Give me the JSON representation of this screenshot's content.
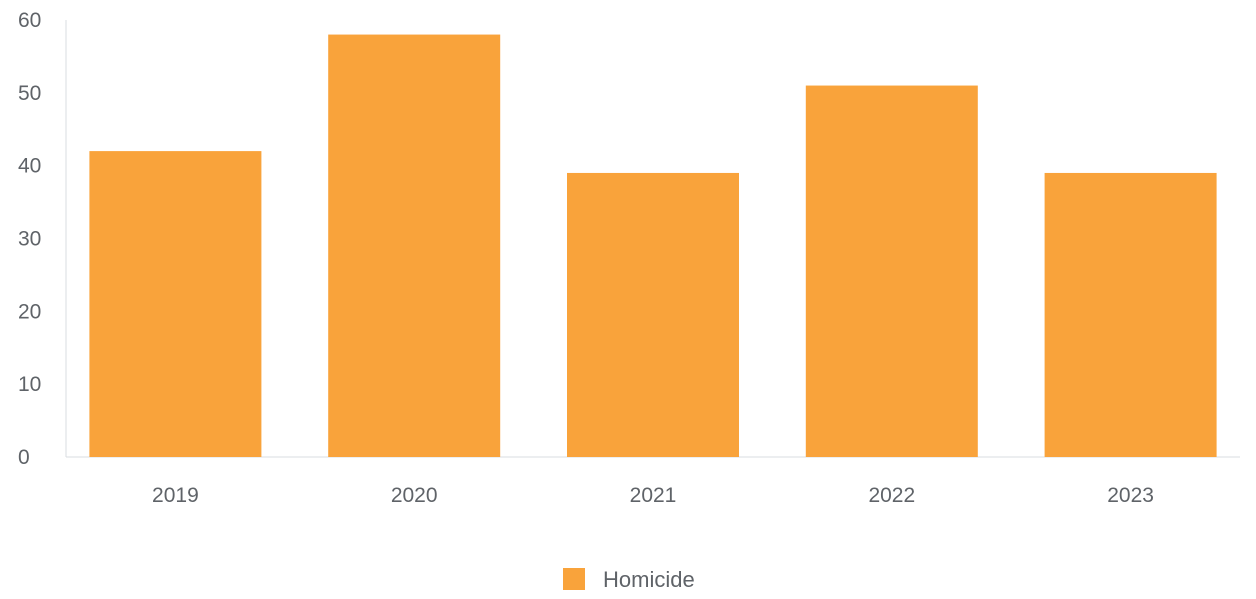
{
  "chart_data": {
    "type": "bar",
    "categories": [
      "2019",
      "2020",
      "2021",
      "2022",
      "2023"
    ],
    "series": [
      {
        "name": "Homicide",
        "values": [
          42,
          58,
          39,
          51,
          39
        ],
        "color": "#f9a33b"
      }
    ],
    "ylim": [
      0,
      60
    ],
    "yticks": [
      0,
      10,
      20,
      30,
      40,
      50,
      60
    ],
    "grid": false,
    "legend": "bottom-center",
    "title": "",
    "xlabel": "",
    "ylabel": ""
  }
}
